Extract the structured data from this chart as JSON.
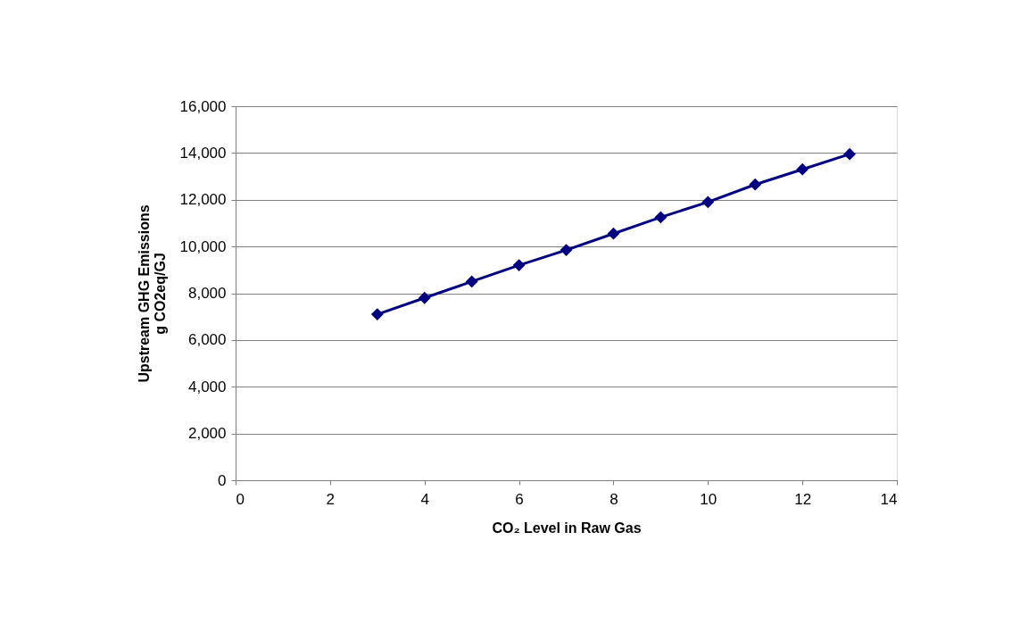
{
  "chart_data": {
    "type": "line",
    "xlabel": "CO₂ Level in Raw Gas",
    "ylabel": "Upstream GHG Emissions\ng CO2eq/GJ",
    "x": [
      3,
      4,
      5,
      6,
      7,
      8,
      9,
      10,
      11,
      12,
      13
    ],
    "series": [
      {
        "color": "#000080",
        "values": [
          7100,
          7800,
          8500,
          9200,
          9850,
          10550,
          11250,
          11900,
          12650,
          13300,
          13950
        ]
      }
    ],
    "xlim": [
      0,
      14
    ],
    "xticks": [
      0,
      2,
      4,
      6,
      8,
      10,
      12,
      14
    ],
    "ylim": [
      0,
      16000
    ],
    "yticks": [
      0,
      {
        "value": 2000,
        "label": "2,000"
      },
      {
        "value": 4000,
        "label": "4,000"
      },
      {
        "value": 6000,
        "label": "6,000"
      },
      {
        "value": 8000,
        "label": "8,000"
      },
      {
        "value": 10000,
        "label": "10,000"
      },
      {
        "value": 12000,
        "label": "12,000"
      },
      {
        "value": 14000,
        "label": "14,000"
      },
      {
        "value": 16000,
        "label": "16,000"
      }
    ],
    "grid": "y",
    "legend": false,
    "marker": "diamond",
    "line_style": "solid"
  }
}
